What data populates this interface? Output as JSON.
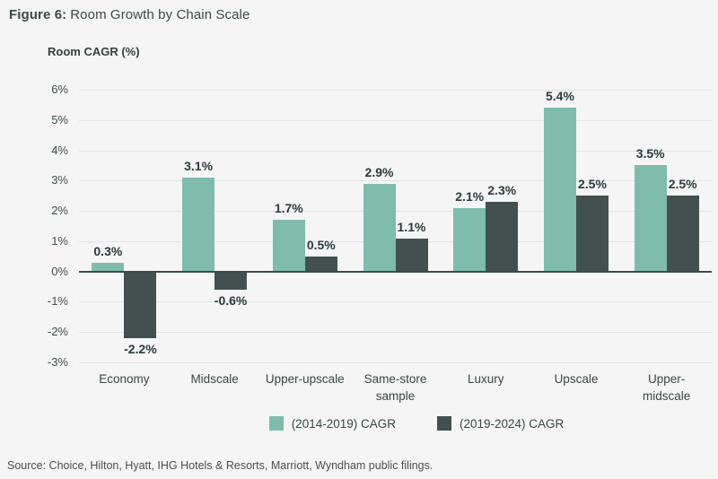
{
  "header": {
    "label": "Figure 6:",
    "title": "Room Growth by Chain Scale"
  },
  "axis_title": "Room CAGR (%)",
  "source": "Source: Choice, Hilton, Hyatt, IHG Hotels & Resorts, Marriott, Wyndham public filings.",
  "colors": {
    "background": "#f5f5f5",
    "series1": "#7fbcab",
    "series2": "#42514f",
    "gridline": "#e2e3e2",
    "zero_line": "#3c4b4a",
    "text": "#3a4646"
  },
  "legend": [
    {
      "label": "(2014-2019) CAGR",
      "color": "#7fbcab"
    },
    {
      "label": "(2019-2024) CAGR",
      "color": "#42514f"
    }
  ],
  "chart_data": {
    "type": "bar",
    "title": "Figure 6: Room Growth by Chain Scale",
    "xlabel": "",
    "ylabel": "Room CAGR (%)",
    "categories": [
      "Economy",
      "Midscale",
      "Upper-upscale",
      "Same-store sample",
      "Luxury",
      "Upscale",
      "Upper-midscale"
    ],
    "series": [
      {
        "name": "(2014-2019) CAGR",
        "color": "#7fbcab",
        "values": [
          0.3,
          3.1,
          1.7,
          2.9,
          2.1,
          5.4,
          3.5
        ]
      },
      {
        "name": "(2019-2024) CAGR",
        "color": "#42514f",
        "values": [
          -2.2,
          -0.6,
          0.5,
          1.1,
          2.3,
          2.5,
          2.5
        ]
      }
    ],
    "ylim": [
      -3,
      6
    ],
    "ytick_step": 1,
    "ytick_suffix": "%",
    "grid": true,
    "legend_position": "bottom",
    "value_labels": true
  }
}
